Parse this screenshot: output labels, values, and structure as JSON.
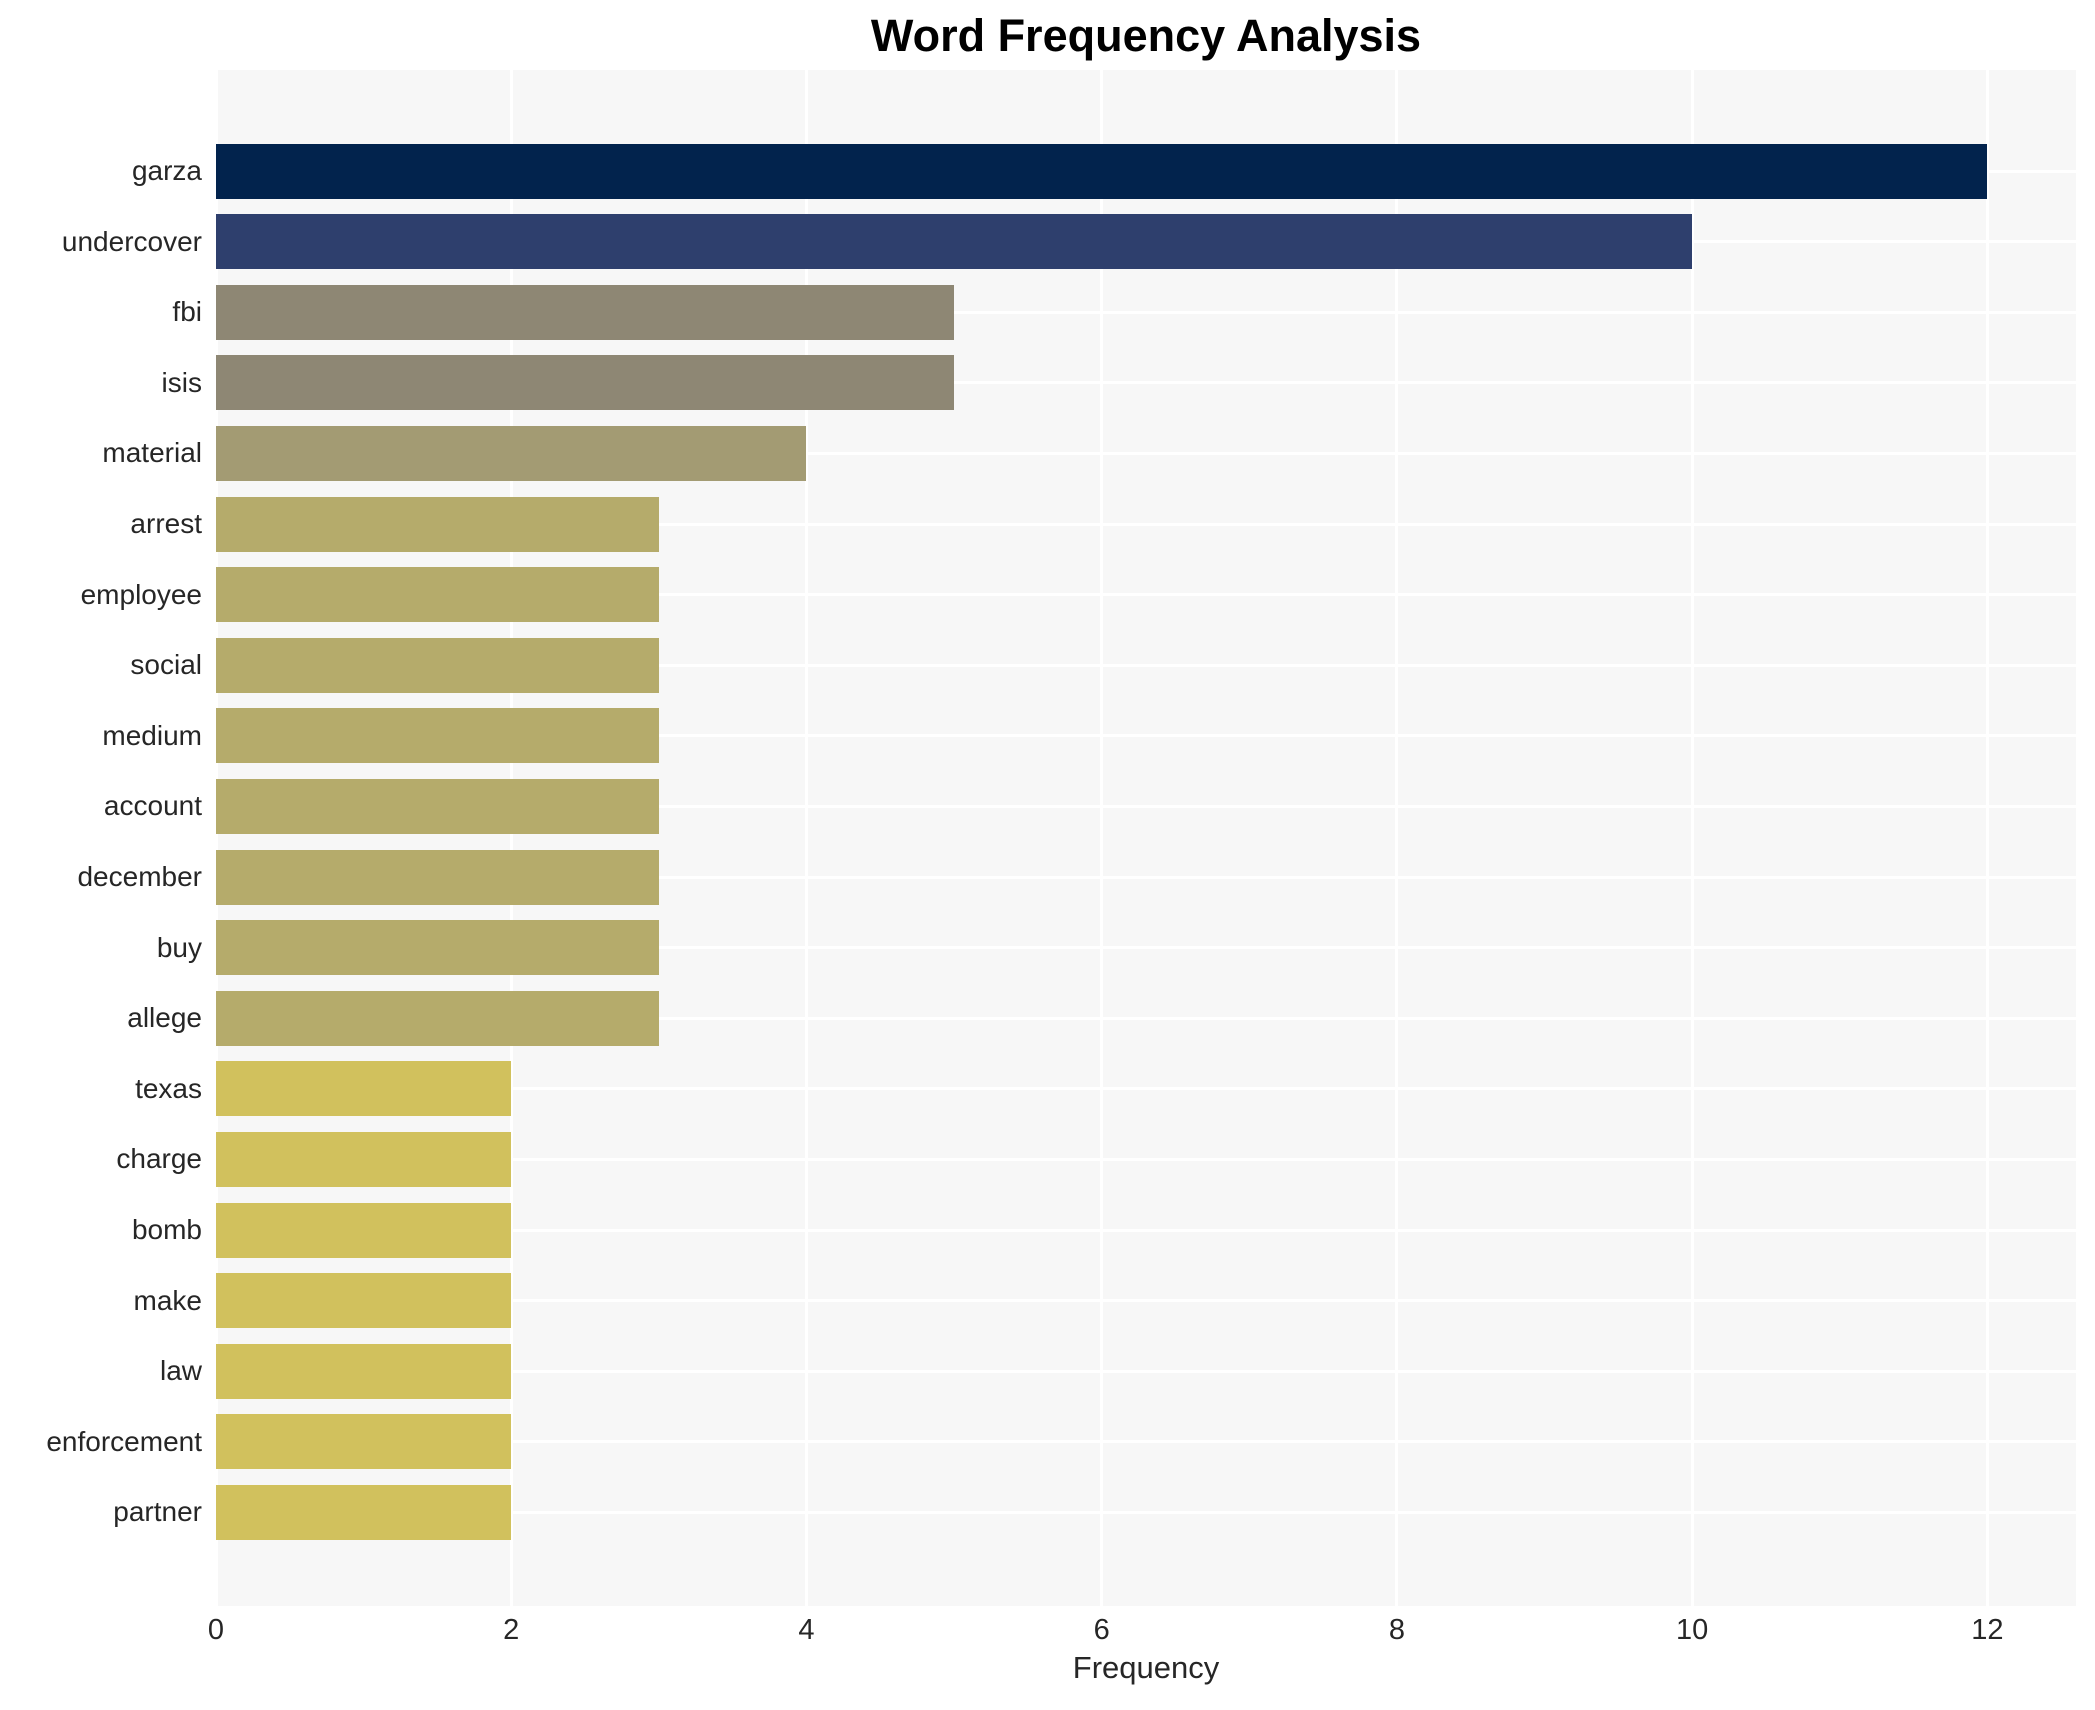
{
  "chart_data": {
    "type": "bar",
    "orientation": "horizontal",
    "title": "Word Frequency Analysis",
    "xlabel": "Frequency",
    "ylabel": "",
    "categories": [
      "garza",
      "undercover",
      "fbi",
      "isis",
      "material",
      "arrest",
      "employee",
      "social",
      "medium",
      "account",
      "december",
      "buy",
      "allege",
      "texas",
      "charge",
      "bomb",
      "make",
      "law",
      "enforcement",
      "partner"
    ],
    "values": [
      12,
      10,
      5,
      5,
      4,
      3,
      3,
      3,
      3,
      3,
      3,
      3,
      3,
      2,
      2,
      2,
      2,
      2,
      2,
      2
    ],
    "bar_colors": [
      "#02234d",
      "#2e3f6d",
      "#8e8774",
      "#8e8774",
      "#a39b73",
      "#b5ab6b",
      "#b5ab6b",
      "#b5ab6b",
      "#b5ab6b",
      "#b5ab6b",
      "#b5ab6b",
      "#b5ab6b",
      "#b5ab6b",
      "#d1c15d",
      "#d1c15d",
      "#d1c15d",
      "#d1c15d",
      "#d1c15d",
      "#d1c15d",
      "#d1c15d"
    ],
    "xticks": [
      0,
      2,
      4,
      6,
      8,
      10,
      12
    ],
    "xlim": [
      0,
      12.6
    ],
    "grid": true,
    "legend": false,
    "colors": {
      "figure_bg": "#ffffff",
      "plot_bg": "#f7f7f7",
      "gridline": "#ffffff",
      "title_text": "#000000",
      "axis_text": "#262626"
    }
  }
}
